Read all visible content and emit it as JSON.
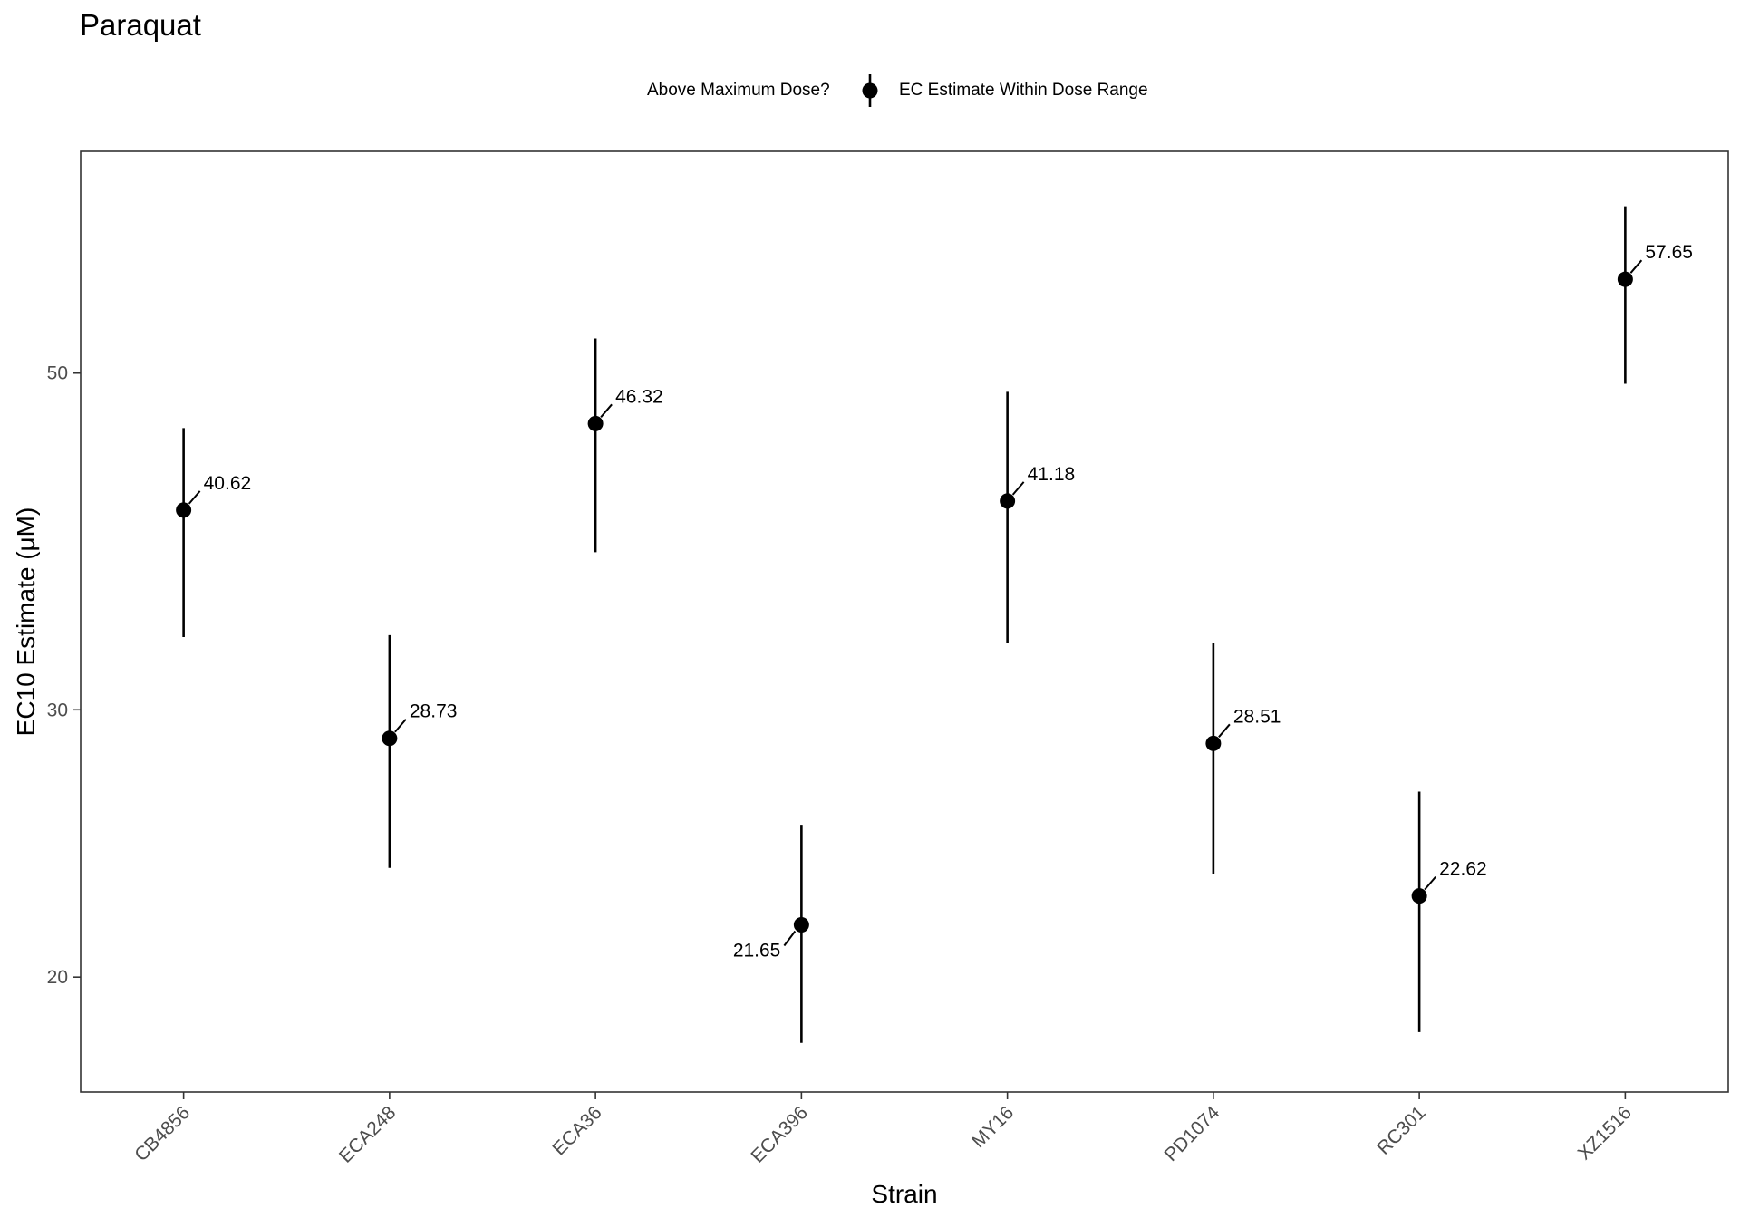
{
  "title": "Paraquat",
  "legend": {
    "title": "Above Maximum Dose?",
    "items": [
      {
        "label": "EC Estimate Within Dose Range",
        "marker": "point-range"
      }
    ]
  },
  "colors": {
    "ink": "#000000",
    "axis": "#333333",
    "tick_text": "#4d4d4d",
    "panel_border": "#333333"
  },
  "chart_data": {
    "type": "scatter",
    "title": "Paraquat",
    "xlabel": "Strain",
    "ylabel": "EC10 Estimate (μM)",
    "y_scale": "log",
    "ylim": [
      16.8,
      70
    ],
    "y_ticks": [
      20,
      30,
      50
    ],
    "grid": false,
    "legend_position": "top",
    "categories": [
      "CB4856",
      "ECA248",
      "ECA36",
      "ECA396",
      "MY16",
      "PD1074",
      "RC301",
      "XZ1516"
    ],
    "series": [
      {
        "name": "EC Estimate Within Dose Range",
        "values": [
          40.62,
          28.73,
          46.32,
          21.65,
          41.18,
          28.51,
          22.62,
          57.65
        ],
        "lower": [
          33.5,
          23.6,
          38.1,
          18.1,
          33.2,
          23.4,
          18.4,
          49.2
        ],
        "upper": [
          46.0,
          33.6,
          52.7,
          25.2,
          48.6,
          33.2,
          26.5,
          64.4
        ],
        "labels": [
          "40.62",
          "28.73",
          "46.32",
          "21.65",
          "41.18",
          "28.51",
          "22.62",
          "57.65"
        ],
        "label_side": [
          "right",
          "right",
          "right",
          "left",
          "right",
          "right",
          "right",
          "right"
        ]
      }
    ]
  }
}
